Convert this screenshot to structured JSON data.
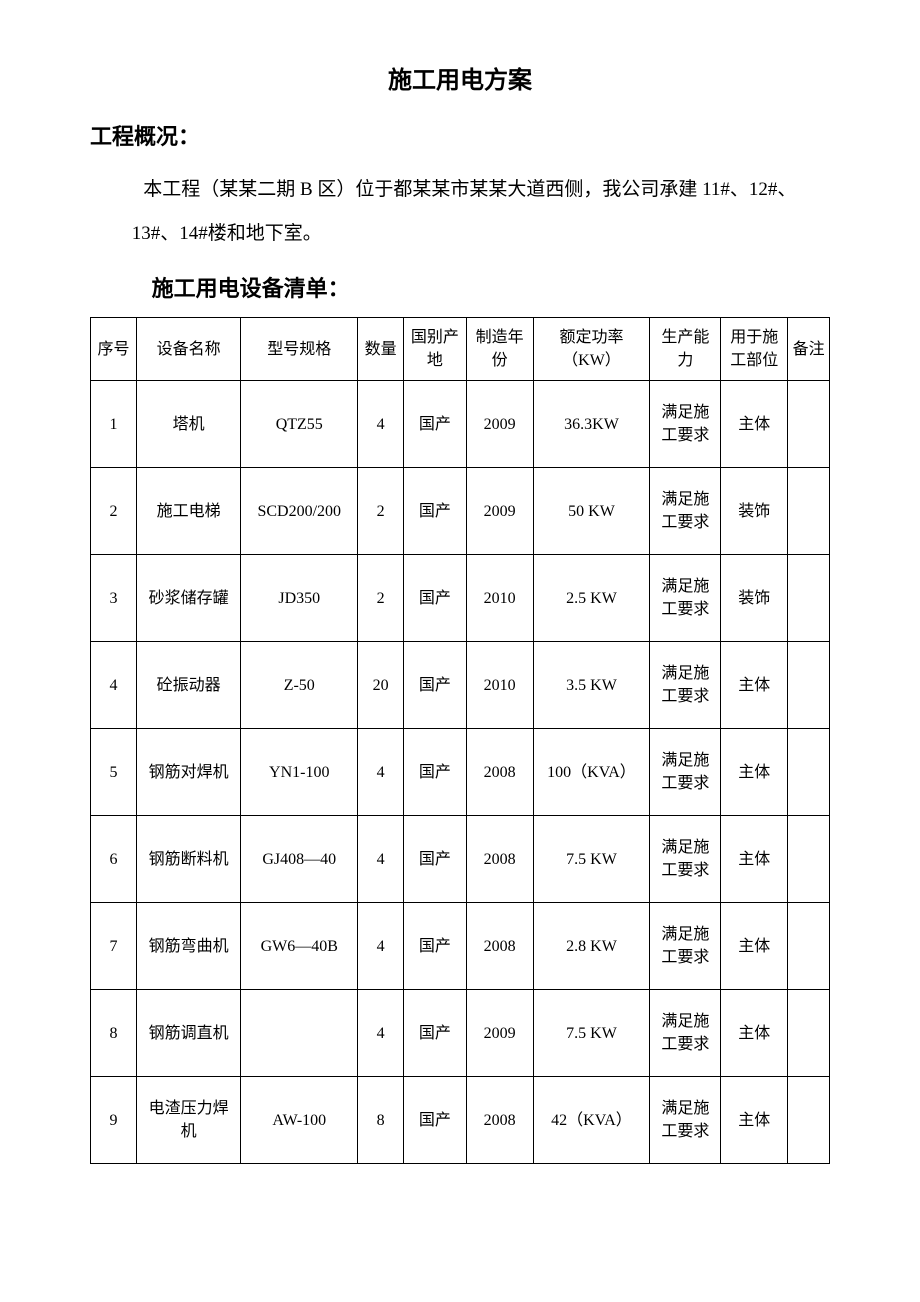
{
  "title": "施工用电方案",
  "section_heading": "工程概况：",
  "paragraph_line1": "本工程（某某二期 B 区）位于都某某市某某大道西侧，我公司承建 11#、12#、",
  "paragraph_line2": "13#、14#楼和地下室。",
  "equipment_heading": "施工用电设备清单：",
  "table": {
    "columns": [
      {
        "key": "seq",
        "label": "序号"
      },
      {
        "key": "name",
        "label": "设备名称"
      },
      {
        "key": "model",
        "label": "型号规格"
      },
      {
        "key": "qty",
        "label": "数量"
      },
      {
        "key": "origin",
        "label": "国别产地"
      },
      {
        "key": "year",
        "label": "制造年份"
      },
      {
        "key": "power",
        "label": "额定功率（KW）"
      },
      {
        "key": "cap",
        "label": "生产能力"
      },
      {
        "key": "part",
        "label": "用于施工部位"
      },
      {
        "key": "note",
        "label": "备注"
      }
    ],
    "rows": [
      {
        "seq": "1",
        "name": "塔机",
        "model": "QTZ55",
        "qty": "4",
        "origin": "国产",
        "year": "2009",
        "power": "36.3KW",
        "cap": "满足施工要求",
        "part": "主体",
        "note": ""
      },
      {
        "seq": "2",
        "name": "施工电梯",
        "model": "SCD200/200",
        "qty": "2",
        "origin": "国产",
        "year": "2009",
        "power": "50 KW",
        "cap": "满足施工要求",
        "part": "装饰",
        "note": ""
      },
      {
        "seq": "3",
        "name": "砂浆储存罐",
        "model": "JD350",
        "qty": "2",
        "origin": "国产",
        "year": "2010",
        "power": "2.5 KW",
        "cap": "满足施工要求",
        "part": "装饰",
        "note": ""
      },
      {
        "seq": "4",
        "name": "砼振动器",
        "model": "Z-50",
        "qty": "20",
        "origin": "国产",
        "year": "2010",
        "power": "3.5 KW",
        "cap": "满足施工要求",
        "part": "主体",
        "note": ""
      },
      {
        "seq": "5",
        "name": "钢筋对焊机",
        "model": "YN1-100",
        "qty": "4",
        "origin": "国产",
        "year": "2008",
        "power": "100（KVA）",
        "cap": "满足施工要求",
        "part": "主体",
        "note": ""
      },
      {
        "seq": "6",
        "name": "钢筋断料机",
        "model": "GJ408—40",
        "qty": "4",
        "origin": "国产",
        "year": "2008",
        "power": "7.5 KW",
        "cap": "满足施工要求",
        "part": "主体",
        "note": ""
      },
      {
        "seq": "7",
        "name": "钢筋弯曲机",
        "model": "GW6—40B",
        "qty": "4",
        "origin": "国产",
        "year": "2008",
        "power": "2.8 KW",
        "cap": "满足施工要求",
        "part": "主体",
        "note": ""
      },
      {
        "seq": "8",
        "name": "钢筋调直机",
        "model": "",
        "qty": "4",
        "origin": "国产",
        "year": "2009",
        "power": "7.5 KW",
        "cap": "满足施工要求",
        "part": "主体",
        "note": ""
      },
      {
        "seq": "9",
        "name": "电渣压力焊机",
        "model": "AW-100",
        "qty": "8",
        "origin": "国产",
        "year": "2008",
        "power": "42（KVA）",
        "cap": "满足施工要求",
        "part": "主体",
        "note": ""
      }
    ]
  },
  "styling": {
    "background_color": "#ffffff",
    "text_color": "#000000",
    "border_color": "#000000",
    "title_fontsize_pt": 18,
    "heading_fontsize_pt": 16,
    "body_fontsize_pt": 14,
    "table_fontsize_pt": 12,
    "font_family": "SimSun"
  }
}
